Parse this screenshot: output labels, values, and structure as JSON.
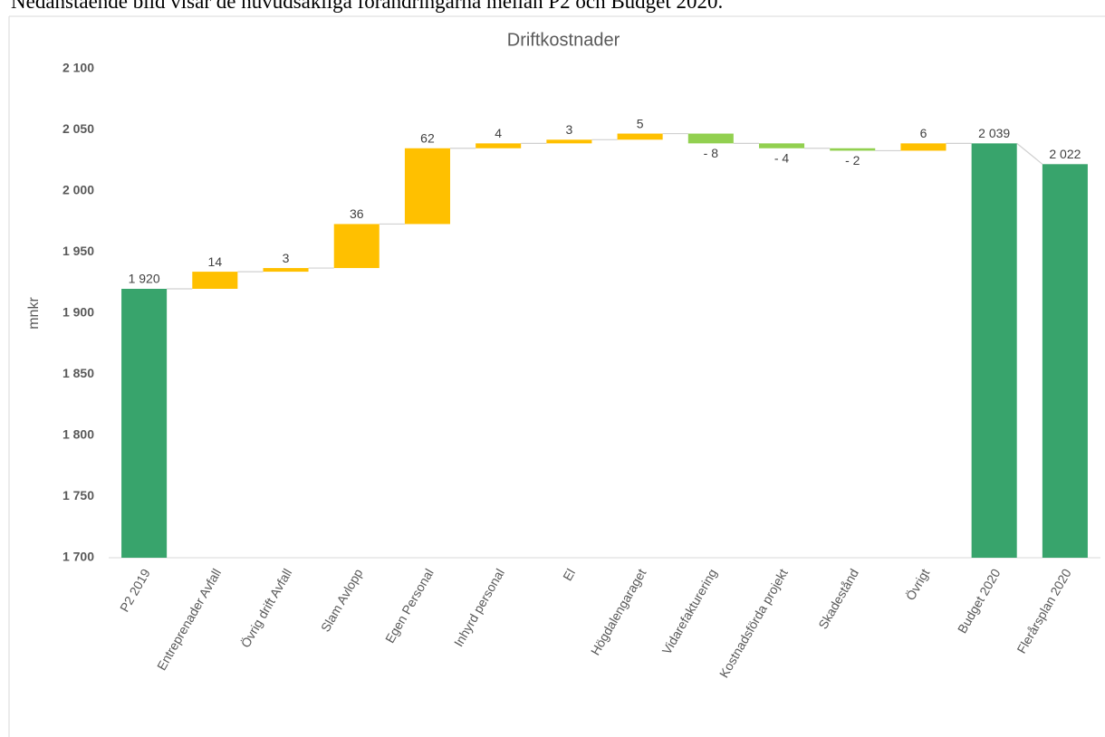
{
  "caption": "Nedanstående bild visar de huvudsakliga förändringarna mellan P2 och Budget 2020.",
  "chart_data": {
    "type": "waterfall",
    "title": "Driftkostnader",
    "y_label": "mnkr",
    "categories": [
      "P2 2019",
      "Entreprenader Avfall",
      "Övrig drift Avfall",
      "Slam Avlopp",
      "Egen Personal",
      "Inhyrd personal",
      "El",
      "Högdalengaraget",
      "Vidarefakturering",
      "Kostnadsförda projekt",
      "Skadestånd",
      "Övrigt",
      "Budget 2020",
      "Flerårsplan 2020"
    ],
    "values": [
      1920,
      14,
      3,
      36,
      62,
      4,
      3,
      5,
      -8,
      -4,
      -2,
      6,
      2039,
      2022
    ],
    "value_labels": [
      "1 920",
      "14",
      "3",
      "36",
      "62",
      "4",
      "3",
      "5",
      "- 8",
      "- 4",
      "- 2",
      "6",
      "2 039",
      "2 022"
    ],
    "measure": [
      "total",
      "relative",
      "relative",
      "relative",
      "relative",
      "relative",
      "relative",
      "relative",
      "relative",
      "relative",
      "relative",
      "relative",
      "total",
      "total"
    ],
    "colors": {
      "total": "#38a46c",
      "increase": "#ffc000",
      "decrease": "#92d050"
    },
    "ylim": [
      1700,
      2100
    ],
    "yticks": [
      {
        "value": 1700,
        "label": "1 700"
      },
      {
        "value": 1750,
        "label": "1 750"
      },
      {
        "value": 1800,
        "label": "1 800"
      },
      {
        "value": 1850,
        "label": "1 850"
      },
      {
        "value": 1900,
        "label": "1 900"
      },
      {
        "value": 1950,
        "label": "1 950"
      },
      {
        "value": 2000,
        "label": "2 000"
      },
      {
        "value": 2050,
        "label": "2 050"
      },
      {
        "value": 2100,
        "label": "2 100"
      }
    ],
    "grid": false
  }
}
